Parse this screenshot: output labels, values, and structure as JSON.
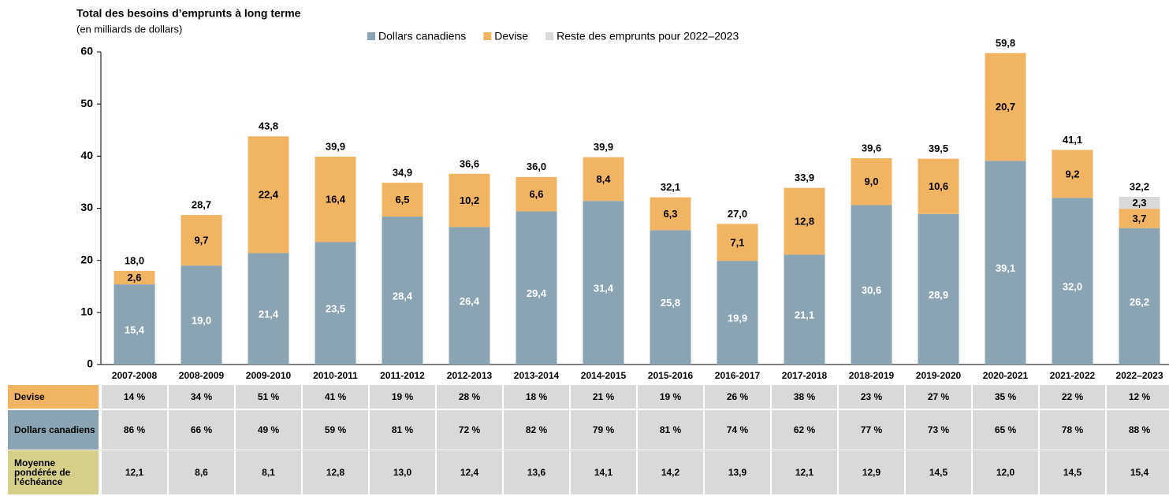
{
  "chart_data": {
    "type": "stacked_bar",
    "title": "Total des besoins d’emprunts à long terme",
    "subtitle": "(en milliards de dollars)",
    "categories": [
      "2007-2008",
      "2008-2009",
      "2009-2010",
      "2010-2011",
      "2011-2012",
      "2012-2013",
      "2013-2014",
      "2014-2015",
      "2015-2016",
      "2016-2017",
      "2017-2018",
      "2018-2019",
      "2019-2020",
      "2020-2021",
      "2021-2022",
      "2022–2023"
    ],
    "series": [
      {
        "name": "Dollars canadiens",
        "color": "#8aa4b3",
        "label_color": "#ffffff",
        "values": [
          15.4,
          19.0,
          21.4,
          23.5,
          28.4,
          26.4,
          29.4,
          31.4,
          25.8,
          19.9,
          21.1,
          30.6,
          28.9,
          39.1,
          32.0,
          26.2
        ],
        "value_labels": [
          "15,4",
          "19,0",
          "21,4",
          "23,5",
          "28,4",
          "26,4",
          "29,4",
          "31,4",
          "25,8",
          "19,9",
          "21,1",
          "30,6",
          "28,9",
          "39,1",
          "32,0",
          "26,2"
        ]
      },
      {
        "name": "Devise",
        "color": "#f0b462",
        "label_color": "#000000",
        "values": [
          2.6,
          9.7,
          22.4,
          16.4,
          6.5,
          10.2,
          6.6,
          8.4,
          6.3,
          7.1,
          12.8,
          9.0,
          10.6,
          20.7,
          9.2,
          3.7
        ],
        "value_labels": [
          "2,6",
          "9,7",
          "22,4",
          "16,4",
          "6,5",
          "10,2",
          "6,6",
          "8,4",
          "6,3",
          "7,1",
          "12,8",
          "9,0",
          "10,6",
          "20,7",
          "9,2",
          "3,7"
        ]
      },
      {
        "name": "Reste des emprunts pour 2022–2023",
        "color": "#d9d9d9",
        "label_color": "#000000",
        "values": [
          null,
          null,
          null,
          null,
          null,
          null,
          null,
          null,
          null,
          null,
          null,
          null,
          null,
          null,
          null,
          2.3
        ],
        "value_labels": [
          null,
          null,
          null,
          null,
          null,
          null,
          null,
          null,
          null,
          null,
          null,
          null,
          null,
          null,
          null,
          "2,3"
        ]
      }
    ],
    "totals": [
      18.0,
      28.7,
      43.8,
      39.9,
      34.9,
      36.6,
      36.0,
      39.9,
      32.1,
      27.0,
      33.9,
      39.6,
      39.5,
      59.8,
      41.1,
      32.2
    ],
    "total_labels": [
      "18,0",
      "28,7",
      "43,8",
      "39,9",
      "34,9",
      "36,6",
      "36,0",
      "39,9",
      "32,1",
      "27,0",
      "33,9",
      "39,6",
      "39,5",
      "59,8",
      "41,1",
      "32,2"
    ],
    "ylim": [
      0,
      60
    ],
    "yticks": [
      0,
      10,
      20,
      30,
      40,
      50,
      60
    ],
    "grid": false,
    "legend": "top"
  },
  "table": {
    "rows": [
      {
        "label": "Devise",
        "color": "#f0b462",
        "cells": [
          "14 %",
          "34 %",
          "51 %",
          "41 %",
          "19 %",
          "28 %",
          "18 %",
          "21 %",
          "19 %",
          "26 %",
          "38 %",
          "23 %",
          "27 %",
          "35 %",
          "22 %",
          "12 %"
        ]
      },
      {
        "label": "Dollars canadiens",
        "color": "#8aa4b3",
        "cells": [
          "86 %",
          "66 %",
          "49 %",
          "59 %",
          "81 %",
          "72 %",
          "82 %",
          "79 %",
          "81 %",
          "74 %",
          "62 %",
          "77 %",
          "73 %",
          "65 %",
          "78 %",
          "88 %"
        ]
      },
      {
        "label": "Moyenne pondérée de l’échéance",
        "color": "#d5cf8a",
        "cells": [
          "12,1",
          "8,6",
          "8,1",
          "12,8",
          "13,0",
          "12,4",
          "13,6",
          "14,1",
          "14,2",
          "13,9",
          "12,1",
          "12,9",
          "14,5",
          "12,0",
          "14,5",
          "15,4"
        ]
      }
    ]
  }
}
